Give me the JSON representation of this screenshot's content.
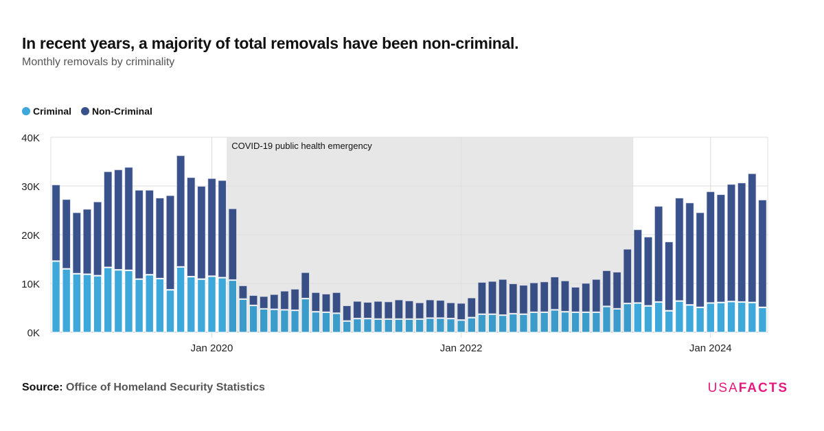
{
  "header": {
    "title": "In recent years, a majority of total removals have been non-criminal.",
    "subtitle": "Monthly removals by criminality"
  },
  "footer": {
    "source_label": "Source:",
    "source_value": "Office of Homeland Security Statistics",
    "logo_light": "USA",
    "logo_bold": "FACTS"
  },
  "colors": {
    "criminal": "#3fa8db",
    "non_criminal": "#3a528b",
    "shade": "#e7e7e7",
    "logo": "#e6197e"
  },
  "chart_data": {
    "type": "bar",
    "stacked": true,
    "title": "In recent years, a majority of total removals have been non-criminal.",
    "subtitle": "Monthly removals by criminality",
    "legend": "top-left",
    "grid": true,
    "ylim": [
      0,
      40000
    ],
    "y_ticks": [
      {
        "value": 0,
        "label": "0K"
      },
      {
        "value": 10000,
        "label": "10K"
      },
      {
        "value": 20000,
        "label": "20K"
      },
      {
        "value": 30000,
        "label": "30K"
      },
      {
        "value": 40000,
        "label": "40K"
      }
    ],
    "x_ticks": [
      {
        "value": "2020-01",
        "label": "Jan 2020"
      },
      {
        "value": "2022-01",
        "label": "Jan 2022"
      },
      {
        "value": "2024-01",
        "label": "Jan 2024"
      }
    ],
    "annotation": {
      "label": "COVID-19 public health emergency",
      "start": "2020-03",
      "end": "2023-05"
    },
    "categories": [
      "2018-10",
      "2018-11",
      "2018-12",
      "2019-01",
      "2019-02",
      "2019-03",
      "2019-04",
      "2019-05",
      "2019-06",
      "2019-07",
      "2019-08",
      "2019-09",
      "2019-10",
      "2019-11",
      "2019-12",
      "2020-01",
      "2020-02",
      "2020-03",
      "2020-04",
      "2020-05",
      "2020-06",
      "2020-07",
      "2020-08",
      "2020-09",
      "2020-10",
      "2020-11",
      "2020-12",
      "2021-01",
      "2021-02",
      "2021-03",
      "2021-04",
      "2021-05",
      "2021-06",
      "2021-07",
      "2021-08",
      "2021-09",
      "2021-10",
      "2021-11",
      "2021-12",
      "2022-01",
      "2022-02",
      "2022-03",
      "2022-04",
      "2022-05",
      "2022-06",
      "2022-07",
      "2022-08",
      "2022-09",
      "2022-10",
      "2022-11",
      "2022-12",
      "2023-01",
      "2023-02",
      "2023-03",
      "2023-04",
      "2023-05",
      "2023-06",
      "2023-07",
      "2023-08",
      "2023-09",
      "2023-10",
      "2023-11",
      "2023-12",
      "2024-01",
      "2024-02",
      "2024-03",
      "2024-04",
      "2024-05",
      "2024-06"
    ],
    "series": [
      {
        "name": "Criminal",
        "values": [
          14500,
          12900,
          11900,
          11800,
          11500,
          13200,
          12700,
          12600,
          10800,
          11700,
          10900,
          8600,
          13300,
          11300,
          10800,
          11400,
          11100,
          10600,
          6700,
          5400,
          4700,
          4600,
          4500,
          4400,
          6800,
          4100,
          4000,
          3800,
          2200,
          2700,
          2700,
          2600,
          2600,
          2600,
          2600,
          2600,
          2800,
          2800,
          2700,
          2400,
          2900,
          3600,
          3600,
          3400,
          3700,
          3600,
          4000,
          4000,
          4500,
          4100,
          4000,
          4000,
          4000,
          5200,
          4700,
          5800,
          5900,
          5300,
          6100,
          4300,
          6300,
          5500,
          5000,
          5900,
          6000,
          6200,
          6100,
          6000,
          5000
        ]
      },
      {
        "name": "Non-Criminal",
        "values": [
          15700,
          14300,
          12600,
          13400,
          15200,
          19700,
          20600,
          21200,
          18300,
          17400,
          16600,
          19400,
          22900,
          20400,
          19100,
          20100,
          20000,
          14700,
          2800,
          2100,
          2600,
          3100,
          3900,
          4400,
          5400,
          4000,
          3800,
          4300,
          3200,
          3600,
          3400,
          3700,
          3600,
          4000,
          3800,
          3400,
          3800,
          3700,
          3300,
          3500,
          4100,
          6600,
          6800,
          7400,
          6200,
          6000,
          6100,
          6300,
          6800,
          6400,
          5200,
          6000,
          6800,
          7400,
          7600,
          11200,
          15100,
          14200,
          19700,
          14200,
          21200,
          21000,
          19500,
          22900,
          22200,
          24100,
          24500,
          26500,
          22100
        ]
      }
    ]
  }
}
